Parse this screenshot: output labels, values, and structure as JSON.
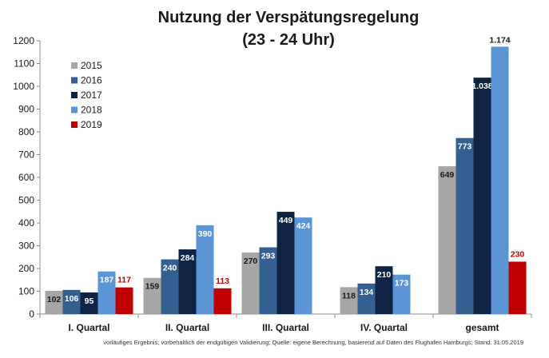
{
  "chart_data": {
    "type": "bar",
    "title_line1": "Nutzung der Verspätungsregelung",
    "title_line2": "(23 - 24 Uhr)",
    "xlabel": "",
    "ylabel": "",
    "ylim": [
      0,
      1200
    ],
    "yticks": [
      0,
      100,
      200,
      300,
      400,
      500,
      600,
      700,
      800,
      900,
      1000,
      1100,
      1200
    ],
    "grid": false,
    "legend_position": "top-left",
    "categories": [
      "I. Quartal",
      "II. Quartal",
      "III. Quartal",
      "IV. Quartal",
      "gesamt"
    ],
    "series": [
      {
        "name": "2015",
        "color": "#a6a6a6",
        "values": [
          102,
          159,
          270,
          118,
          649
        ],
        "labels": [
          "102",
          "159",
          "270",
          "118",
          "649"
        ]
      },
      {
        "name": "2016",
        "color": "#335f91",
        "values": [
          106,
          240,
          293,
          134,
          773
        ],
        "labels": [
          "106",
          "240",
          "293",
          "134",
          "773"
        ]
      },
      {
        "name": "2017",
        "color": "#0f2444",
        "values": [
          95,
          284,
          449,
          210,
          1038
        ],
        "labels": [
          "95",
          "284",
          "449",
          "210",
          "1.038"
        ]
      },
      {
        "name": "2018",
        "color": "#5b95d6",
        "values": [
          187,
          390,
          424,
          173,
          1174
        ],
        "labels": [
          "187",
          "390",
          "424",
          "173",
          "1.174"
        ]
      },
      {
        "name": "2019",
        "color": "#c00000",
        "values": [
          117,
          113,
          null,
          null,
          230
        ],
        "labels": [
          "117",
          "113",
          "",
          "",
          "230"
        ]
      }
    ],
    "footnote": "vorläufiges Ergebnis; vorbehaltlich der endgültigen Validierung; Quelle: eigene Berechnung, basierend auf  Daten des Flughafen Hamburgs; Stand: 31.05.2019"
  }
}
